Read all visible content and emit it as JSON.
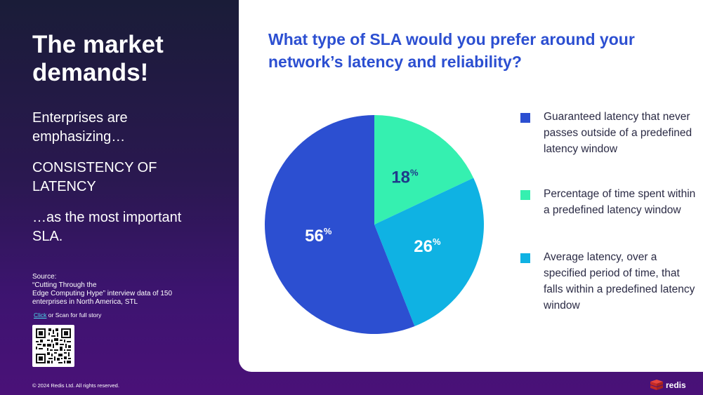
{
  "left_panel": {
    "headline": "The market demands!",
    "intro": "Enterprises are emphasizing…",
    "emphasis": "CONSISTENCY OF LATENCY",
    "outro": "…as the most important SLA.",
    "source_lines": [
      "Source:",
      "“Cutting Through the",
      "Edge Computing Hype” interview data of 150",
      "enterprises in North America, STL"
    ],
    "link_text": "Click",
    "link_suffix": " or Scan for full story"
  },
  "footer": {
    "copyright": "© 2024 Redis Ltd. All rights reserved.",
    "brand_name": "redis"
  },
  "colors": {
    "accent_blue": "#2c4fd1",
    "brand_red": "#d9322b"
  },
  "chart_data": {
    "type": "pie",
    "title": "What type of SLA would you prefer around your network’s latency and reliability?",
    "slices": [
      {
        "label": "Percentage of time spent within a predefined latency window",
        "value": 18,
        "display": "18",
        "color": "#35f0b0"
      },
      {
        "label": "Average latency, over a specified period of time, that falls within a predefined latency window",
        "value": 26,
        "display": "26",
        "color": "#0fb2e3"
      },
      {
        "label": "Guaranteed latency that never passes outside of a predefined latency window",
        "value": 56,
        "display": "56",
        "color": "#2c4fd1"
      }
    ],
    "unit_symbol": "%",
    "legend_order": [
      2,
      0,
      1
    ],
    "legend_position": "right"
  }
}
